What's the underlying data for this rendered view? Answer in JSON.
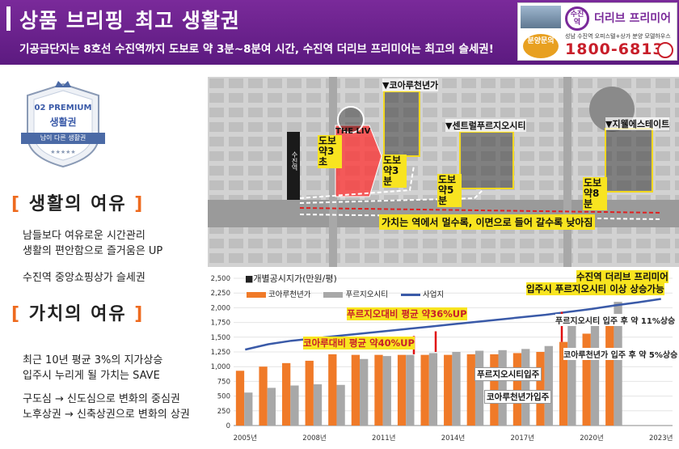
{
  "header": {
    "title": "상품 브리핑_최고 생활권",
    "subtitle": "기공급단지는 8호선 수진역까지 도보로 약 3분~8분여 시간, 수진역 더리브 프리미어는 최고의 슬세권!"
  },
  "brand": {
    "station": "수진역",
    "name": "더리브 프리미어",
    "address": "성남 수진역 오피스텔+상가 분양 모델하우스",
    "ask": "분양문의",
    "phone": "1800-6813"
  },
  "badge": {
    "line1": "02 PREMIUM",
    "line2": "생활권",
    "ribbon": "남이 다른 생활권",
    "stars": "★★★★★"
  },
  "left": {
    "section1_title": "생활의 여유",
    "section1_lines": [
      "남들보다 여유로운 시간관리",
      "생활의 편안함으로 즐거움은 UP",
      "",
      "수진역 중앙쇼핑상가 슬세권"
    ],
    "section2_title": "가치의 여유",
    "section2_lines_a": [
      "최근 10년 평균 3%의 지가상승",
      "입주시 누리게 될 가치는 SAVE"
    ],
    "section2_lines_b": [
      "구도심 → 신도심으로 변화의 중심권",
      "노후상권 → 신축상권으로 변화의 상권"
    ]
  },
  "map": {
    "station_sign": "수진역",
    "theliv": "THE LIV",
    "labels": {
      "walk3": "도보 약3초",
      "walk3min": "도보 약3분",
      "walk5": "도보 약5분",
      "walk8": "도보 약8분",
      "coaru": "▼코아루천년가",
      "central": "▼센트럴푸르지오시티",
      "jiwell": "▼지웰에스테이트",
      "value": "가치는 역에서 멀수록, 이면으로 들어 갈수록 낮아짐"
    }
  },
  "chart_data": {
    "type": "bar",
    "title": "■개별공시지가(만원/평)",
    "categories": [
      "2005",
      "2006",
      "2007",
      "2008",
      "2009",
      "2010",
      "2011",
      "2012",
      "2013",
      "2014",
      "2015",
      "2016",
      "2017",
      "2018",
      "2019",
      "2020",
      "2021",
      "2022",
      "2023"
    ],
    "x_tick_labels": [
      "2005년",
      "2008년",
      "2011년",
      "2014년",
      "2017년",
      "2020년",
      "2023년"
    ],
    "series": [
      {
        "name": "코아루천년가",
        "color": "#f07a28",
        "values": [
          930,
          1000,
          1060,
          1100,
          1210,
          1200,
          1200,
          1200,
          1200,
          1200,
          1210,
          1210,
          1230,
          1250,
          1420,
          1560,
          1720,
          null,
          null
        ]
      },
      {
        "name": "푸르지오시티",
        "color": "#a8a8a8",
        "values": [
          560,
          640,
          680,
          700,
          690,
          1130,
          1180,
          1200,
          1230,
          1250,
          1270,
          1280,
          1300,
          1350,
          1690,
          1850,
          2100,
          null,
          null
        ]
      },
      {
        "name": "사업지",
        "color": "#3a5aa8",
        "values": [
          1290,
          1380,
          1440,
          1480,
          1520,
          1560,
          1600,
          1640,
          1680,
          1720,
          1760,
          1800,
          1840,
          1880,
          1930,
          1980,
          2040,
          2090,
          2150
        ]
      }
    ],
    "y_ticks": [
      "0",
      "250",
      "500",
      "750",
      "1,000",
      "1,250",
      "1,500",
      "1,750",
      "2,000",
      "2,250",
      "2,500"
    ],
    "ylim": [
      0,
      2500
    ]
  },
  "callouts": {
    "top_right_1": "수진역 더리브 프리미어",
    "top_right_2": "입주시 푸르지오시티 이상 상승가능",
    "prugio_avg": "푸르지오대비 평균 약36%UP",
    "coaru_avg": "코아루대비 평균 약40%UP",
    "prugio_rise": "푸르지오시티 입주 후 약 11%상승",
    "coaru_rise": "코아루천년가 입주 후 약 5%상승",
    "prugio_move": "푸르지오시티입주",
    "coaru_move": "코아루천년가입주"
  }
}
